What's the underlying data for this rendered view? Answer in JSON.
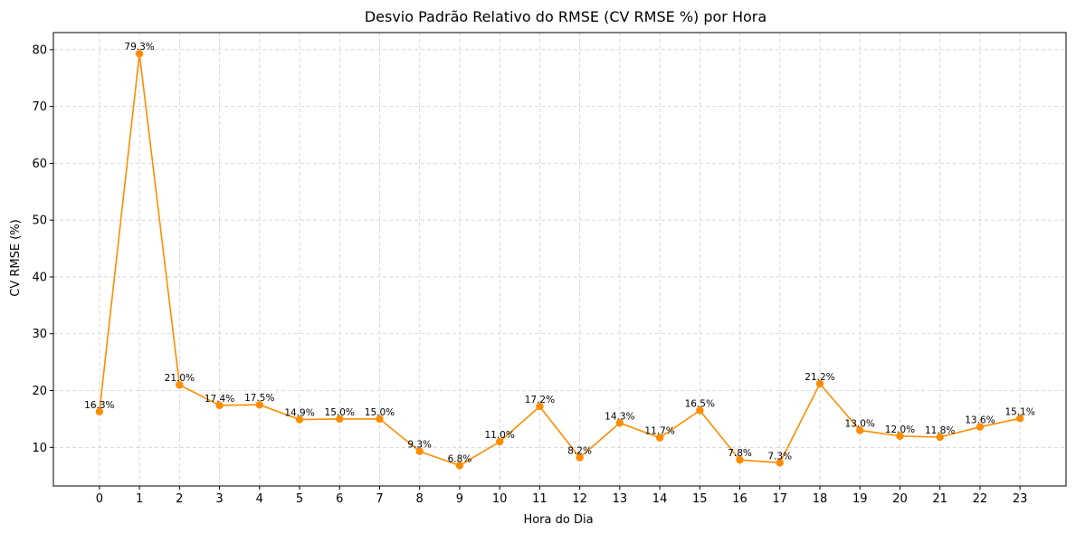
{
  "chart_data": {
    "type": "line",
    "title": "Desvio Padrão Relativo do RMSE (CV RMSE %) por Hora",
    "xlabel": "Hora do Dia",
    "ylabel": "CV RMSE (%)",
    "x": [
      0,
      1,
      2,
      3,
      4,
      5,
      6,
      7,
      8,
      9,
      10,
      11,
      12,
      13,
      14,
      15,
      16,
      17,
      18,
      19,
      20,
      21,
      22,
      23
    ],
    "x_tick_labels": [
      "0",
      "1",
      "2",
      "3",
      "4",
      "5",
      "6",
      "7",
      "8",
      "9",
      "10",
      "11",
      "12",
      "13",
      "14",
      "15",
      "16",
      "17",
      "18",
      "19",
      "20",
      "21",
      "22",
      "23"
    ],
    "values": [
      16.3,
      79.3,
      21.0,
      17.4,
      17.5,
      14.9,
      15.0,
      15.0,
      9.3,
      6.8,
      11.0,
      17.2,
      8.2,
      14.3,
      11.7,
      16.5,
      7.8,
      7.3,
      21.2,
      13.0,
      12.0,
      11.8,
      13.6,
      15.1
    ],
    "data_labels": [
      "16.3%",
      "79.3%",
      "21.0%",
      "17.4%",
      "17.5%",
      "14.9%",
      "15.0%",
      "15.0%",
      "9.3%",
      "6.8%",
      "11.0%",
      "17.2%",
      "8.2%",
      "14.3%",
      "11.7%",
      "16.5%",
      "7.8%",
      "7.3%",
      "21.2%",
      "13.0%",
      "12.0%",
      "11.8%",
      "13.6%",
      "15.1%"
    ],
    "y_ticks": [
      10,
      20,
      30,
      40,
      50,
      60,
      70,
      80
    ],
    "y_tick_labels": [
      "10",
      "20",
      "30",
      "40",
      "50",
      "60",
      "70",
      "80"
    ],
    "xlim": [
      -1.15,
      24.15
    ],
    "ylim": [
      3.2,
      83.0
    ],
    "grid": true,
    "line_color": "#ff8c00",
    "marker_color": "#ff8c00"
  }
}
